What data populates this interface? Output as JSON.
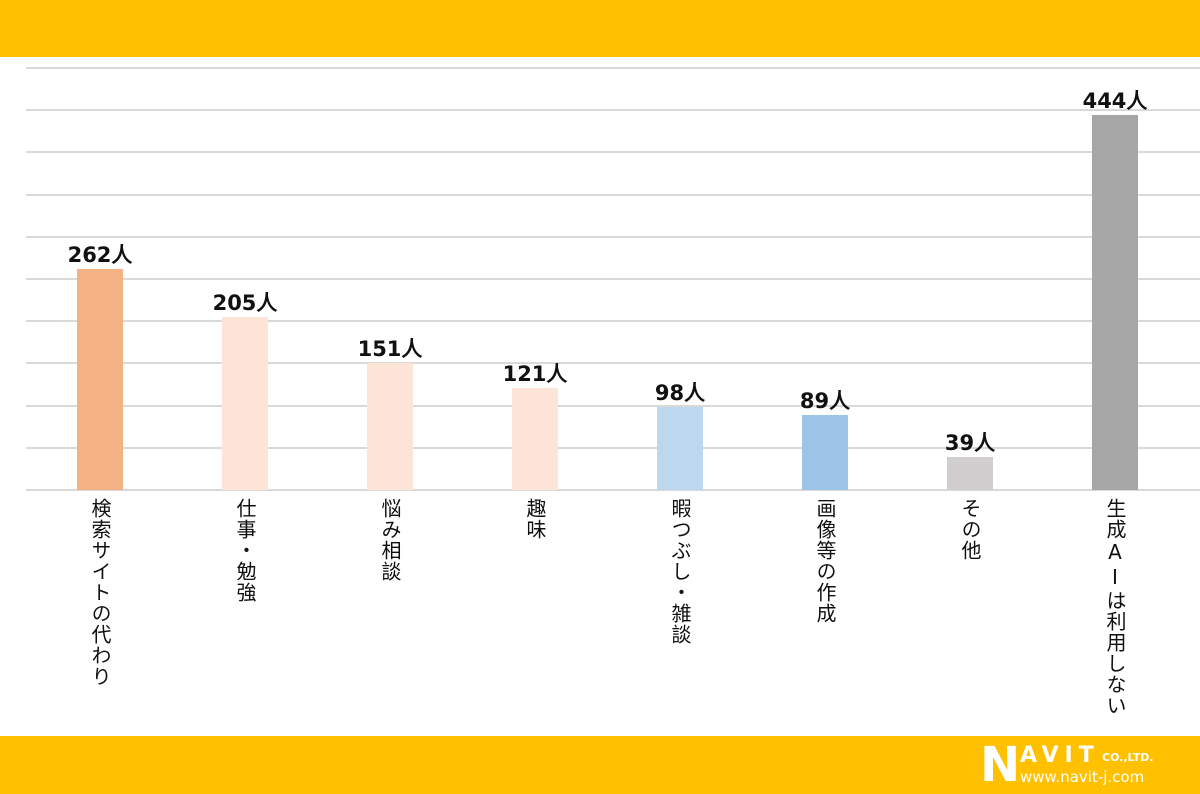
{
  "colors": {
    "band": "#ffc000",
    "grid": "#d9d9d9"
  },
  "footer": {
    "logo_letter": "N",
    "logo_rest": "AVIT",
    "logo_suffix": "CO.,LTD.",
    "logo_url": "www.navit-j.com"
  },
  "chart_data": {
    "type": "bar",
    "title": "",
    "xlabel": "",
    "ylabel": "",
    "ylim": [
      0,
      500
    ],
    "grid": true,
    "value_suffix": "人",
    "categories": [
      "検索サイトの代わり",
      "仕事・勉強",
      "悩み相談",
      "趣味",
      "暇つぶし・雑談",
      "画像等の作成",
      "その他",
      "生成AIは利用しない"
    ],
    "values": [
      262,
      205,
      151,
      121,
      98,
      89,
      39,
      444
    ],
    "value_labels": [
      "262人",
      "205人",
      "151人",
      "121人",
      "98人",
      "89人",
      "39人",
      "444人"
    ],
    "bar_colors": [
      "#f4b183",
      "#fce4d6",
      "#fce4d6",
      "#fce4d6",
      "#bdd7ee",
      "#9dc3e6",
      "#d0cece",
      "#a6a6a6"
    ]
  }
}
